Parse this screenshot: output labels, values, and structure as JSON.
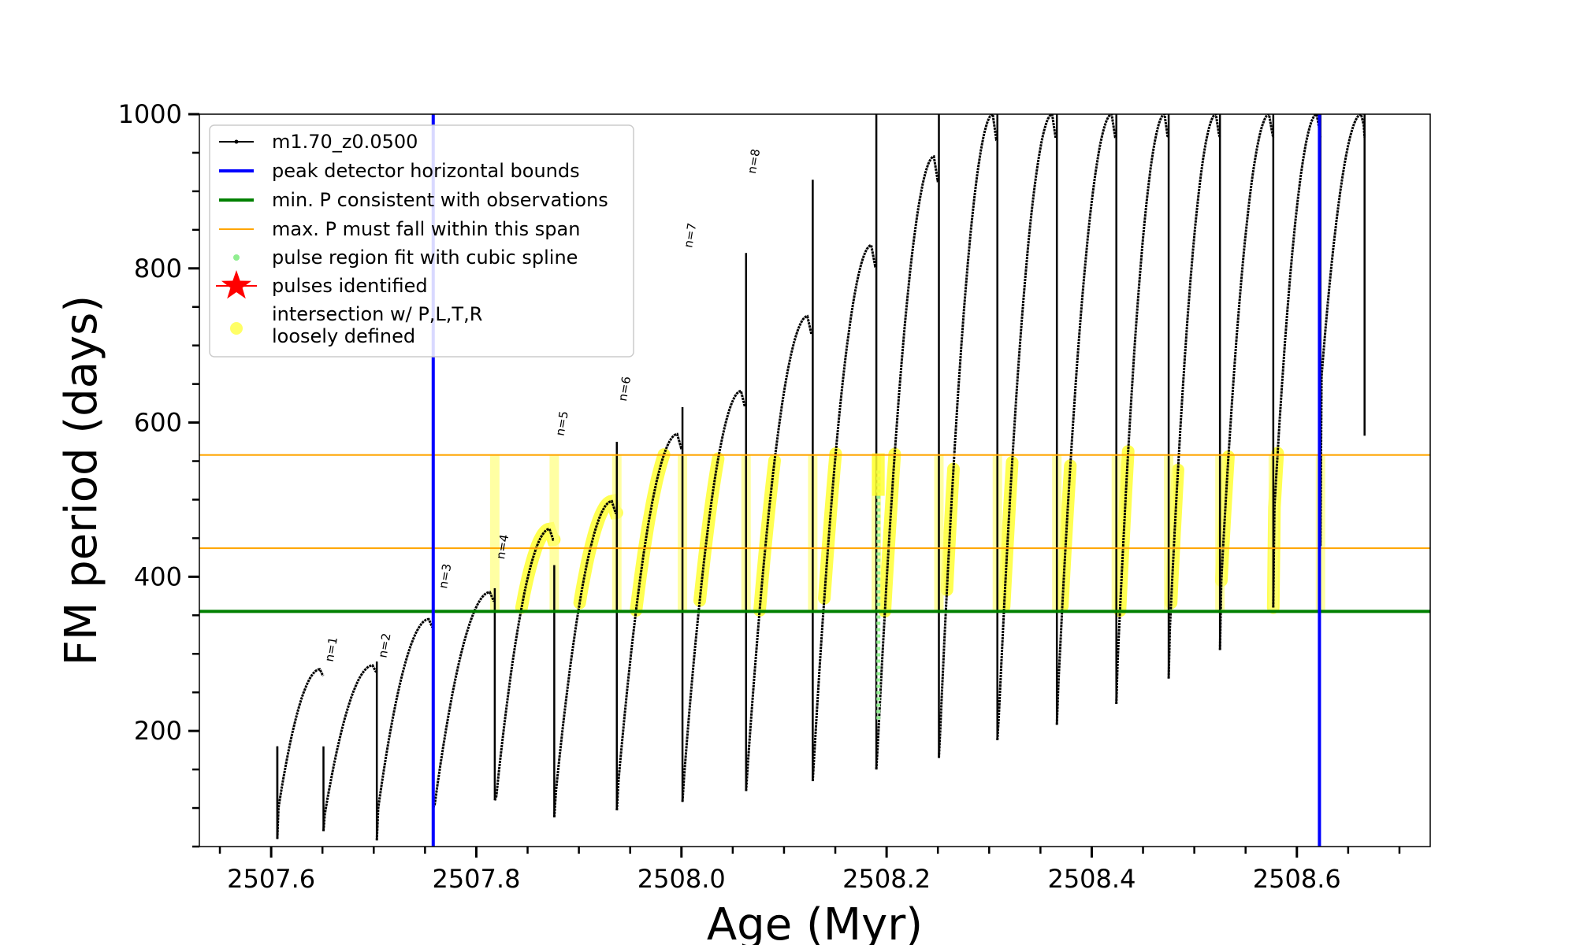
{
  "chart_data": {
    "type": "line",
    "xlabel": "Age (Myr)",
    "ylabel": "FM period (days)",
    "xlim": [
      2507.53,
      2508.73
    ],
    "ylim": [
      50,
      1000
    ],
    "x_ticks": [
      2507.6,
      2507.8,
      2508.0,
      2508.2,
      2508.4,
      2508.6
    ],
    "x_tick_labels": [
      "2507.6",
      "2507.8",
      "2508.0",
      "2508.2",
      "2508.4",
      "2508.6"
    ],
    "y_ticks": [
      200,
      400,
      600,
      800,
      1000
    ],
    "y_tick_labels": [
      "200",
      "400",
      "600",
      "800",
      "1000"
    ],
    "legend_position": "upper-left",
    "legend": [
      {
        "label": "m1.70_z0.0500",
        "color": "#000000",
        "style": "line-marker"
      },
      {
        "label": "peak detector horizontal bounds",
        "color": "#0000ff",
        "style": "line"
      },
      {
        "label": "min. P consistent with observations",
        "color": "#008000",
        "style": "line"
      },
      {
        "label": "max. P must fall within this span",
        "color": "#ffa500",
        "style": "line"
      },
      {
        "label": "pulse region fit with cubic spline",
        "color": "#90ee90",
        "style": "dot"
      },
      {
        "label": "pulses identified",
        "color": "#ff0000",
        "style": "star"
      },
      {
        "label": "intersection w/ P,L,T,R\nloosely defined",
        "color": "#ffff66",
        "style": "dot"
      }
    ],
    "vertical_lines": [
      {
        "x": 2507.758,
        "color": "#0000ff"
      },
      {
        "x": 2508.622,
        "color": "#0000ff"
      }
    ],
    "horizontal_lines": [
      {
        "y": 355,
        "color": "#008000"
      },
      {
        "y": 437,
        "color": "#ffa500"
      },
      {
        "y": 558,
        "color": "#ffa500"
      }
    ],
    "series": [
      {
        "name": "m1.70_z0.0500",
        "color": "#000000",
        "cycles": [
          {
            "x0": 2507.606,
            "x1": 2507.651,
            "ymin": 60,
            "ystart": 100,
            "ypeak": 280,
            "spike": 180
          },
          {
            "x0": 2507.651,
            "x1": 2507.703,
            "ymin": 70,
            "ystart": 92,
            "ypeak": 285,
            "spike": 290
          },
          {
            "x0": 2507.703,
            "x1": 2507.758,
            "ymin": 58,
            "ystart": 100,
            "ypeak": 345,
            "spike": 345
          },
          {
            "x0": 2507.758,
            "x1": 2507.818,
            "ymin": 100,
            "ystart": 105,
            "ypeak": 380,
            "spike": 385
          },
          {
            "x0": 2507.818,
            "x1": 2507.876,
            "ymin": 110,
            "ystart": 115,
            "ypeak": 462,
            "spike": 415
          },
          {
            "x0": 2507.876,
            "x1": 2507.937,
            "ymin": 88,
            "ystart": 120,
            "ypeak": 498,
            "spike": 575
          },
          {
            "x0": 2507.937,
            "x1": 2508.001,
            "ymin": 97,
            "ystart": 135,
            "ypeak": 585,
            "spike": 620
          },
          {
            "x0": 2508.001,
            "x1": 2508.063,
            "ymin": 108,
            "ystart": 140,
            "ypeak": 641,
            "spike": 820
          },
          {
            "x0": 2508.063,
            "x1": 2508.128,
            "ymin": 122,
            "ystart": 155,
            "ypeak": 738,
            "spike": 915
          },
          {
            "x0": 2508.128,
            "x1": 2508.19,
            "ymin": 135,
            "ystart": 170,
            "ypeak": 830,
            "spike": 1000
          },
          {
            "x0": 2508.19,
            "x1": 2508.251,
            "ymin": 150,
            "ystart": 185,
            "ypeak": 945,
            "spike": 1000
          },
          {
            "x0": 2508.251,
            "x1": 2508.308,
            "ymin": 165,
            "ystart": 205,
            "ypeak": 1000,
            "spike": 1000
          },
          {
            "x0": 2508.308,
            "x1": 2508.366,
            "ymin": 188,
            "ystart": 220,
            "ypeak": 1000,
            "spike": 1000
          },
          {
            "x0": 2508.366,
            "x1": 2508.424,
            "ymin": 208,
            "ystart": 260,
            "ypeak": 1000,
            "spike": 1000
          },
          {
            "x0": 2508.424,
            "x1": 2508.475,
            "ymin": 235,
            "ystart": 290,
            "ypeak": 1000,
            "spike": 1000
          },
          {
            "x0": 2508.475,
            "x1": 2508.525,
            "ymin": 268,
            "ystart": 335,
            "ypeak": 1000,
            "spike": 1000
          },
          {
            "x0": 2508.525,
            "x1": 2508.577,
            "ymin": 305,
            "ystart": 395,
            "ypeak": 1000,
            "spike": 1000
          },
          {
            "x0": 2508.577,
            "x1": 2508.623,
            "ymin": 360,
            "ystart": 490,
            "ypeak": 1000,
            "spike": 1000
          },
          {
            "x0": 2508.623,
            "x1": 2508.666,
            "ymin": 440,
            "ystart": 660,
            "ypeak": 1000,
            "spike": 1000
          }
        ],
        "end_spike": {
          "x": 2508.666,
          "ymin": 583,
          "ymax": 1000
        }
      }
    ],
    "pulse_labels": [
      {
        "text": "n=1",
        "x": 2507.651,
        "y": 285
      },
      {
        "text": "n=2",
        "x": 2507.703,
        "y": 290
      },
      {
        "text": "n=3",
        "x": 2507.762,
        "y": 380
      },
      {
        "text": "n=4",
        "x": 2507.818,
        "y": 418
      },
      {
        "text": "n=5",
        "x": 2507.876,
        "y": 578
      },
      {
        "text": "n=6",
        "x": 2507.937,
        "y": 623
      },
      {
        "text": "n=7",
        "x": 2508.001,
        "y": 822
      },
      {
        "text": "n=8",
        "x": 2508.063,
        "y": 918
      }
    ]
  }
}
